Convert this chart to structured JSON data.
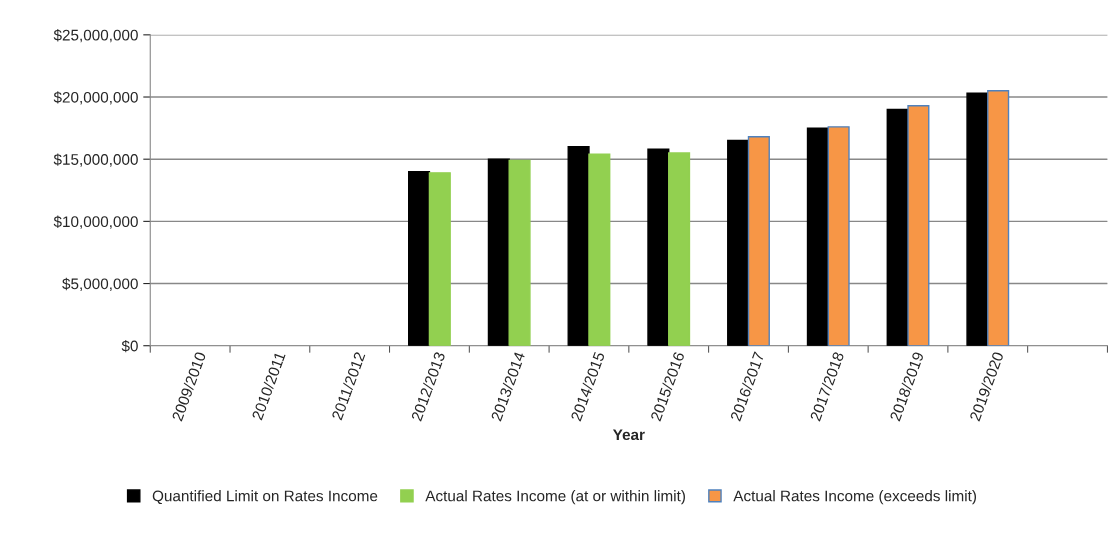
{
  "chart_data": {
    "type": "bar",
    "xlabel": "Year",
    "categories": [
      "2009/2010",
      "2010/2011",
      "2011/2012",
      "2012/2013",
      "2013/2014",
      "2014/2015",
      "2015/2016",
      "2016/2017",
      "2017/2018",
      "2018/2019",
      "2019/2020",
      null
    ],
    "series": [
      {
        "name": "Quantified Limit on Rates Income",
        "color": "#000000",
        "values": [
          null,
          null,
          null,
          14000000,
          15000000,
          16000000,
          15800000,
          16500000,
          17500000,
          19000000,
          20300000,
          null
        ]
      },
      {
        "name": "Actual Rates Income (at or within limit)",
        "color": "#92d050",
        "values": [
          null,
          null,
          null,
          13900000,
          14900000,
          15400000,
          15500000,
          null,
          null,
          null,
          null,
          null
        ]
      },
      {
        "name": "Actual Rates Income (exceeds limit)",
        "color": "#f79646",
        "values": [
          null,
          null,
          null,
          null,
          null,
          null,
          null,
          16800000,
          17600000,
          19300000,
          20500000,
          null
        ]
      }
    ],
    "ylim": [
      0,
      25000000
    ],
    "yticks": [
      {
        "value": 0,
        "label": "$0"
      },
      {
        "value": 5000000,
        "label": "$5,000,000"
      },
      {
        "value": 10000000,
        "label": "$10,000,000"
      },
      {
        "value": 15000000,
        "label": "$15,000,000"
      },
      {
        "value": 20000000,
        "label": "$20,000,000"
      },
      {
        "value": 25000000,
        "label": "$25,000,000"
      }
    ],
    "grid": "y",
    "legend": "bottom"
  }
}
